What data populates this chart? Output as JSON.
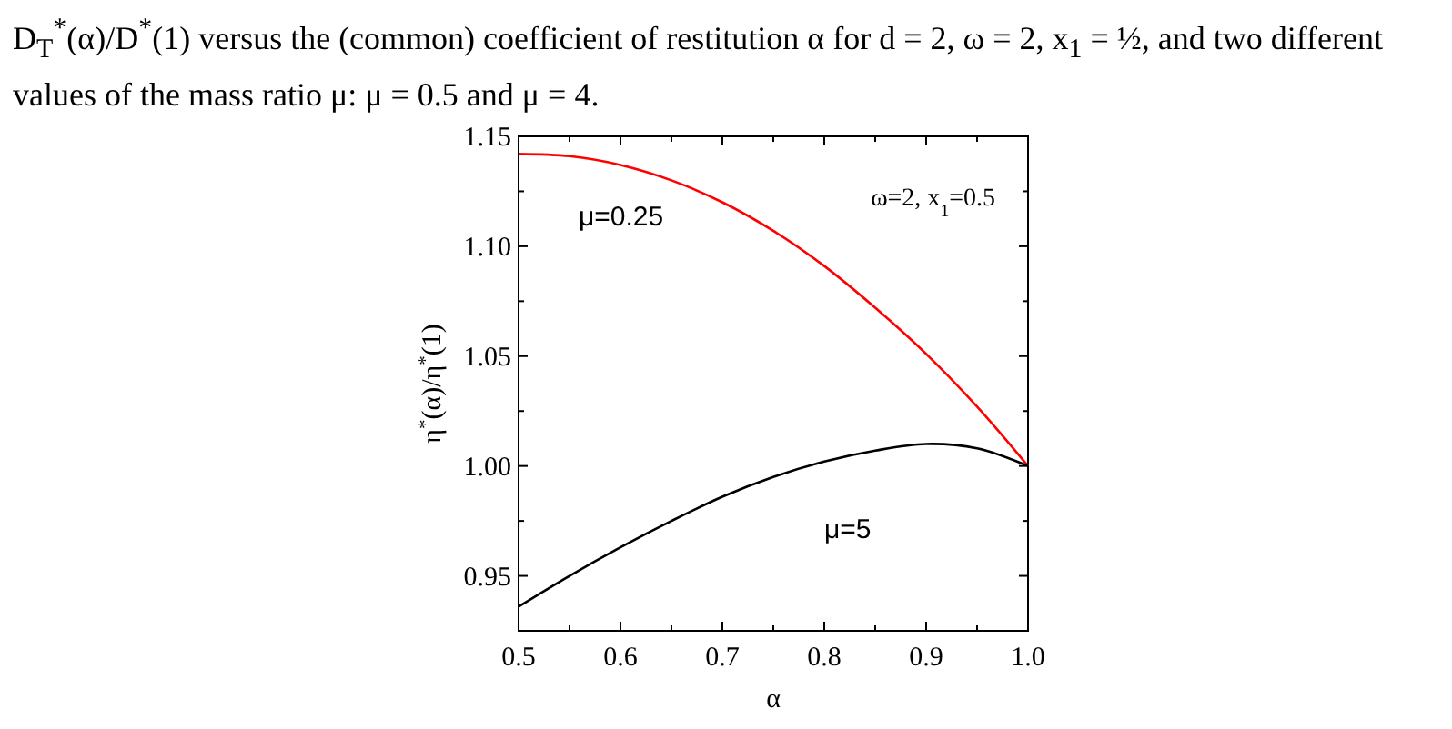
{
  "chart_data": {
    "type": "line",
    "xlabel": "α",
    "ylabel": "η$^{*}$(α)/η$^{*}$(1)",
    "annotations": [
      "D$_{T}$$^{*}$(α)/D$^{*}$(1) versus the (common) coefficient of restitution α for d = 2, ω = 2, x$_{1}$ = ½, and two different values of the mass ratio μ: μ = 0.5 and μ = 4.",
      "ω=2, x$_{1}$=0.5"
    ],
    "x": [
      0.5,
      0.55,
      0.6,
      0.65,
      0.7,
      0.75,
      0.8,
      0.85,
      0.9,
      0.95,
      1.0
    ],
    "series": [
      {
        "name": "μ=0.25",
        "color": "#ff0000",
        "values": [
          1.142,
          1.141,
          1.137,
          1.13,
          1.12,
          1.107,
          1.091,
          1.072,
          1.051,
          1.027,
          1.0
        ]
      },
      {
        "name": "μ=5",
        "color": "#000000",
        "values": [
          0.936,
          0.95,
          0.963,
          0.975,
          0.986,
          0.995,
          1.002,
          1.007,
          1.01,
          1.008,
          1.0
        ]
      }
    ],
    "xlim": [
      0.5,
      1.0
    ],
    "ylim": [
      0.925,
      1.15
    ],
    "xticks": [
      0.5,
      {
        "value": 0.55,
        "label": null
      },
      0.6,
      {
        "value": 0.65,
        "label": null
      },
      0.7,
      {
        "value": 0.75,
        "label": null
      },
      0.8,
      {
        "value": 0.85,
        "label": null
      },
      0.9,
      {
        "value": 0.95,
        "label": null
      },
      {
        "value": 1.0,
        "label": "1.0"
      }
    ],
    "yticks": [
      0.95,
      {
        "value": 0.975,
        "label": null
      },
      {
        "value": 1.0,
        "label": "1.00"
      },
      {
        "value": 1.025,
        "label": null
      },
      1.05,
      {
        "value": 1.075,
        "label": null
      },
      {
        "value": 1.1,
        "label": "1.10"
      },
      {
        "value": 1.125,
        "label": null
      },
      1.15
    ],
    "grid": false,
    "marker": "none",
    "line_style": "solid"
  }
}
